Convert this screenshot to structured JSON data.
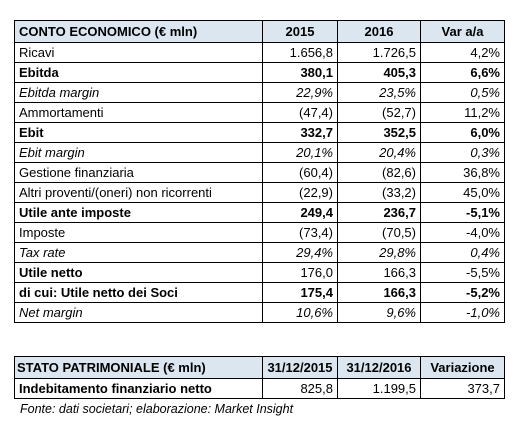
{
  "income_table": {
    "header": [
      "CONTO ECONOMICO (€ mln)",
      "2015",
      "2016",
      "Var a/a"
    ],
    "rows": [
      [
        "Ricavi",
        "1.656,8",
        "1.726,5",
        "4,2%"
      ],
      [
        "Ebitda",
        "380,1",
        "405,3",
        "6,6%"
      ],
      [
        "Ebitda margin",
        "22,9%",
        "23,5%",
        "0,5%"
      ],
      [
        "Ammortamenti",
        "(47,4)",
        "(52,7)",
        "11,2%"
      ],
      [
        "Ebit",
        "332,7",
        "352,5",
        "6,0%"
      ],
      [
        "Ebit margin",
        "20,1%",
        "20,4%",
        "0,3%"
      ],
      [
        "Gestione finanziaria",
        "(60,4)",
        "(82,6)",
        "36,8%"
      ],
      [
        "Altri proventi/(oneri) non ricorrenti",
        "(22,9)",
        "(33,2)",
        "45,0%"
      ],
      [
        "Utile ante imposte",
        "249,4",
        "236,7",
        "-5,1%"
      ],
      [
        "Imposte",
        "(73,4)",
        "(70,5)",
        "-4,0%"
      ],
      [
        "Tax rate",
        "29,4%",
        "29,8%",
        "0,4%"
      ],
      [
        "Utile netto",
        "176,0",
        "166,3",
        "-5,5%"
      ],
      [
        "di cui: Utile netto dei Soci",
        "175,4",
        "166,3",
        "-5,2%"
      ],
      [
        "Net margin",
        "10,6%",
        "9,6%",
        "-1,0%"
      ]
    ]
  },
  "balance_table": {
    "header": [
      "STATO PATRIMONIALE (€ mln)",
      "31/12/2015",
      "31/12/2016",
      "Variazione"
    ],
    "rows": [
      [
        "Indebitamento finanziario netto",
        "825,8",
        "1.199,5",
        "373,7"
      ]
    ]
  },
  "footer": {
    "source": "Fonte: dati societari; elaborazione: Market Insight"
  }
}
